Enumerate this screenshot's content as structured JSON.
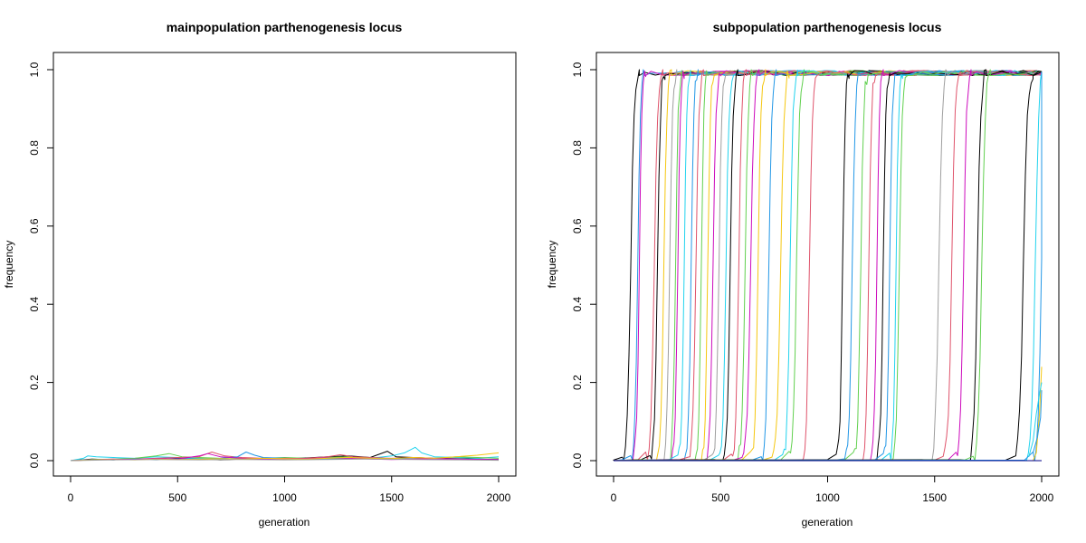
{
  "chart_data": [
    {
      "type": "line",
      "title": "mainpopulation parthenogenesis locus",
      "xlabel": "generation",
      "ylabel": "frequency",
      "xlim": [
        0,
        2000
      ],
      "ylim": [
        0,
        1
      ],
      "xticks": [
        "0",
        "500",
        "1000",
        "1500",
        "2000"
      ],
      "yticks": [
        "0.0",
        "0.2",
        "0.4",
        "0.6",
        "0.8",
        "1.0"
      ],
      "grid": false,
      "legend": "none",
      "series": [
        {
          "color": "#000000",
          "points": [
            [
              0,
              0
            ],
            [
              100,
              0.004
            ],
            [
              200,
              0.002
            ],
            [
              300,
              0.005
            ],
            [
              400,
              0.003
            ],
            [
              500,
              0.006
            ],
            [
              600,
              0.004
            ],
            [
              700,
              0.002
            ],
            [
              800,
              0.004
            ],
            [
              900,
              0.006
            ],
            [
              1000,
              0.005
            ],
            [
              1100,
              0.007
            ],
            [
              1200,
              0.01
            ],
            [
              1300,
              0.012
            ],
            [
              1400,
              0.008
            ],
            [
              1480,
              0.024
            ],
            [
              1520,
              0.01
            ],
            [
              1600,
              0.008
            ],
            [
              1700,
              0.006
            ],
            [
              1800,
              0.005
            ],
            [
              1900,
              0.004
            ],
            [
              2000,
              0.003
            ]
          ]
        },
        {
          "color": "#22d3ee",
          "points": [
            [
              0,
              0
            ],
            [
              60,
              0.006
            ],
            [
              80,
              0.012
            ],
            [
              120,
              0.01
            ],
            [
              200,
              0.008
            ],
            [
              300,
              0.006
            ],
            [
              400,
              0.01
            ],
            [
              500,
              0.008
            ],
            [
              600,
              0.006
            ],
            [
              700,
              0.004
            ],
            [
              800,
              0.006
            ],
            [
              900,
              0.005
            ],
            [
              1000,
              0.004
            ],
            [
              1100,
              0.003
            ],
            [
              1200,
              0.004
            ],
            [
              1300,
              0.005
            ],
            [
              1400,
              0.006
            ],
            [
              1500,
              0.012
            ],
            [
              1560,
              0.02
            ],
            [
              1610,
              0.034
            ],
            [
              1640,
              0.02
            ],
            [
              1700,
              0.01
            ],
            [
              1800,
              0.008
            ],
            [
              1900,
              0.006
            ],
            [
              2000,
              0.01
            ]
          ]
        },
        {
          "color": "#61d04f",
          "points": [
            [
              0,
              0
            ],
            [
              100,
              0.003
            ],
            [
              200,
              0.004
            ],
            [
              300,
              0.006
            ],
            [
              400,
              0.012
            ],
            [
              460,
              0.018
            ],
            [
              520,
              0.01
            ],
            [
              600,
              0.008
            ],
            [
              700,
              0.006
            ],
            [
              800,
              0.004
            ],
            [
              900,
              0.006
            ],
            [
              1000,
              0.008
            ],
            [
              1100,
              0.006
            ],
            [
              1200,
              0.008
            ],
            [
              1300,
              0.01
            ],
            [
              1400,
              0.006
            ],
            [
              1500,
              0.004
            ],
            [
              1600,
              0.005
            ],
            [
              1700,
              0.006
            ],
            [
              1800,
              0.01
            ],
            [
              1900,
              0.008
            ],
            [
              2000,
              0.006
            ]
          ]
        },
        {
          "color": "#df536b",
          "points": [
            [
              0,
              0
            ],
            [
              100,
              0.002
            ],
            [
              200,
              0.003
            ],
            [
              300,
              0.004
            ],
            [
              400,
              0.006
            ],
            [
              500,
              0.008
            ],
            [
              600,
              0.01
            ],
            [
              660,
              0.022
            ],
            [
              720,
              0.012
            ],
            [
              800,
              0.008
            ],
            [
              900,
              0.006
            ],
            [
              1000,
              0.004
            ],
            [
              1100,
              0.006
            ],
            [
              1200,
              0.01
            ],
            [
              1260,
              0.015
            ],
            [
              1320,
              0.01
            ],
            [
              1400,
              0.008
            ],
            [
              1500,
              0.006
            ],
            [
              1600,
              0.008
            ],
            [
              1700,
              0.006
            ],
            [
              1800,
              0.004
            ],
            [
              2000,
              0.002
            ]
          ]
        },
        {
          "color": "#2297e6",
          "points": [
            [
              0,
              0
            ],
            [
              100,
              0.003
            ],
            [
              200,
              0.002
            ],
            [
              300,
              0.004
            ],
            [
              400,
              0.003
            ],
            [
              500,
              0.005
            ],
            [
              600,
              0.004
            ],
            [
              700,
              0.006
            ],
            [
              780,
              0.01
            ],
            [
              820,
              0.022
            ],
            [
              860,
              0.014
            ],
            [
              900,
              0.008
            ],
            [
              1000,
              0.006
            ],
            [
              1100,
              0.004
            ],
            [
              1200,
              0.005
            ],
            [
              1300,
              0.004
            ],
            [
              1400,
              0.006
            ],
            [
              1500,
              0.005
            ],
            [
              1600,
              0.004
            ],
            [
              1700,
              0.003
            ],
            [
              1800,
              0.004
            ],
            [
              2000,
              0.003
            ]
          ]
        },
        {
          "color": "#cd0bbc",
          "points": [
            [
              0,
              0
            ],
            [
              100,
              0.002
            ],
            [
              200,
              0.004
            ],
            [
              300,
              0.003
            ],
            [
              400,
              0.005
            ],
            [
              500,
              0.004
            ],
            [
              600,
              0.012
            ],
            [
              640,
              0.018
            ],
            [
              700,
              0.01
            ],
            [
              800,
              0.006
            ],
            [
              900,
              0.004
            ],
            [
              1000,
              0.006
            ],
            [
              1100,
              0.005
            ],
            [
              1200,
              0.007
            ],
            [
              1300,
              0.006
            ],
            [
              1400,
              0.004
            ],
            [
              1500,
              0.003
            ],
            [
              1600,
              0.004
            ],
            [
              1700,
              0.005
            ],
            [
              1800,
              0.004
            ],
            [
              2000,
              0.003
            ]
          ]
        },
        {
          "color": "#f5c710",
          "points": [
            [
              0,
              0
            ],
            [
              100,
              0.002
            ],
            [
              200,
              0.003
            ],
            [
              300,
              0.002
            ],
            [
              400,
              0.004
            ],
            [
              500,
              0.003
            ],
            [
              600,
              0.004
            ],
            [
              700,
              0.005
            ],
            [
              800,
              0.004
            ],
            [
              900,
              0.006
            ],
            [
              1000,
              0.005
            ],
            [
              1100,
              0.004
            ],
            [
              1200,
              0.006
            ],
            [
              1300,
              0.008
            ],
            [
              1400,
              0.006
            ],
            [
              1500,
              0.005
            ],
            [
              1600,
              0.008
            ],
            [
              1700,
              0.006
            ],
            [
              1800,
              0.01
            ],
            [
              1900,
              0.014
            ],
            [
              2000,
              0.02
            ]
          ]
        },
        {
          "color": "#9e9e9e",
          "points": [
            [
              0,
              0
            ],
            [
              200,
              0.002
            ],
            [
              400,
              0.003
            ],
            [
              600,
              0.002
            ],
            [
              800,
              0.003
            ],
            [
              1000,
              0.002
            ],
            [
              1200,
              0.003
            ],
            [
              1400,
              0.004
            ],
            [
              1600,
              0.003
            ],
            [
              1800,
              0.002
            ],
            [
              2000,
              0.001
            ]
          ]
        }
      ]
    },
    {
      "type": "line",
      "title": "subpopulation parthenogenesis locus",
      "xlabel": "generation",
      "ylabel": "frequency",
      "xlim": [
        0,
        2000
      ],
      "ylim": [
        0,
        1
      ],
      "xticks": [
        "0",
        "500",
        "1000",
        "1500",
        "2000"
      ],
      "yticks": [
        "0.0",
        "0.2",
        "0.4",
        "0.6",
        "0.8",
        "1.0"
      ],
      "grid": false,
      "legend": "none",
      "sweep_series": [
        {
          "color": "#000000",
          "start": 40,
          "end": 120
        },
        {
          "color": "#2297e6",
          "start": 80,
          "end": 145
        },
        {
          "color": "#cd0bbc",
          "start": 90,
          "end": 150
        },
        {
          "color": "#df536b",
          "start": 150,
          "end": 230
        },
        {
          "color": "#000000",
          "start": 170,
          "end": 240
        },
        {
          "color": "#f5c710",
          "start": 200,
          "end": 270
        },
        {
          "color": "#9e9e9e",
          "start": 230,
          "end": 295
        },
        {
          "color": "#61d04f",
          "start": 260,
          "end": 320
        },
        {
          "color": "#cd0bbc",
          "start": 270,
          "end": 330
        },
        {
          "color": "#22d3ee",
          "start": 300,
          "end": 360
        },
        {
          "color": "#2297e6",
          "start": 330,
          "end": 395
        },
        {
          "color": "#df536b",
          "start": 350,
          "end": 420
        },
        {
          "color": "#61d04f",
          "start": 380,
          "end": 440
        },
        {
          "color": "#f5c710",
          "start": 410,
          "end": 470
        },
        {
          "color": "#cd0bbc",
          "start": 430,
          "end": 500
        },
        {
          "color": "#9e9e9e",
          "start": 460,
          "end": 525
        },
        {
          "color": "#22d3ee",
          "start": 490,
          "end": 560
        },
        {
          "color": "#000000",
          "start": 510,
          "end": 580
        },
        {
          "color": "#df536b",
          "start": 550,
          "end": 620
        },
        {
          "color": "#61d04f",
          "start": 580,
          "end": 650
        },
        {
          "color": "#cd0bbc",
          "start": 600,
          "end": 680
        },
        {
          "color": "#f5c710",
          "start": 640,
          "end": 710
        },
        {
          "color": "#2297e6",
          "start": 690,
          "end": 760
        },
        {
          "color": "#f5c710",
          "start": 740,
          "end": 820
        },
        {
          "color": "#22d3ee",
          "start": 790,
          "end": 860
        },
        {
          "color": "#61d04f",
          "start": 820,
          "end": 890
        },
        {
          "color": "#df536b",
          "start": 880,
          "end": 950
        },
        {
          "color": "#000000",
          "start": 1040,
          "end": 1100
        },
        {
          "color": "#2297e6",
          "start": 1080,
          "end": 1150
        },
        {
          "color": "#61d04f",
          "start": 1120,
          "end": 1190
        },
        {
          "color": "#df536b",
          "start": 1160,
          "end": 1225
        },
        {
          "color": "#cd0bbc",
          "start": 1200,
          "end": 1260
        },
        {
          "color": "#000000",
          "start": 1230,
          "end": 1290
        },
        {
          "color": "#2297e6",
          "start": 1260,
          "end": 1320
        },
        {
          "color": "#22d3ee",
          "start": 1290,
          "end": 1350
        },
        {
          "color": "#61d04f",
          "start": 1300,
          "end": 1370
        },
        {
          "color": "#9e9e9e",
          "start": 1480,
          "end": 1560
        },
        {
          "color": "#df536b",
          "start": 1540,
          "end": 1620
        },
        {
          "color": "#cd0bbc",
          "start": 1600,
          "end": 1670
        },
        {
          "color": "#000000",
          "start": 1660,
          "end": 1740
        },
        {
          "color": "#61d04f",
          "start": 1680,
          "end": 1760
        },
        {
          "color": "#000000",
          "start": 1870,
          "end": 1960
        },
        {
          "color": "#22d3ee",
          "start": 1930,
          "end": 2010
        },
        {
          "color": "#2297e6",
          "start": 1960,
          "end": 2040
        }
      ],
      "tail_series": [
        {
          "color": "#f5c710",
          "points": [
            [
              1960,
              0
            ],
            [
              1975,
              0.02
            ],
            [
              1990,
              0.12
            ],
            [
              2000,
              0.24
            ]
          ]
        },
        {
          "color": "#22d3ee",
          "points": [
            [
              1940,
              0.01
            ],
            [
              1960,
              0.05
            ],
            [
              1975,
              0.12
            ],
            [
              1990,
              0.17
            ],
            [
              2000,
              0.2
            ]
          ]
        },
        {
          "color": "#2297e6",
          "points": [
            [
              1960,
              0.02
            ],
            [
              1980,
              0.06
            ],
            [
              1995,
              0.11
            ],
            [
              2000,
              0.18
            ]
          ]
        },
        {
          "color": "#000088",
          "points": [
            [
              0,
              0
            ],
            [
              2000,
              0
            ]
          ]
        }
      ]
    }
  ]
}
